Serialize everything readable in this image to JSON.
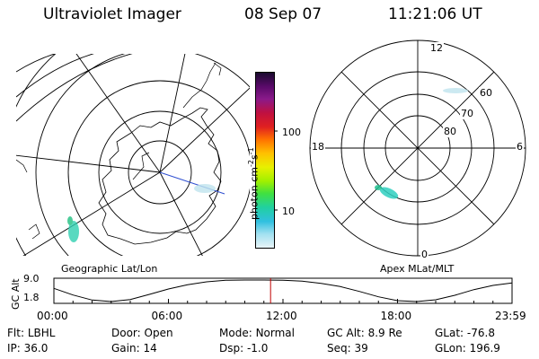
{
  "header": {
    "instrument": "Ultraviolet Imager",
    "date": "08 Sep 07",
    "time": "11:21:06 UT"
  },
  "geo_map": {
    "caption": "Geographic Lat/Lon"
  },
  "apex_map": {
    "caption": "Apex MLat/MLT",
    "mlt_labels": [
      "12",
      "18",
      "6",
      "0"
    ],
    "mlat_labels": [
      "60",
      "70",
      "80"
    ]
  },
  "colorbar": {
    "unit_label": "photon cm",
    "unit_exp1": "-2",
    "unit_s": "s",
    "unit_exp2": "-1",
    "ticks": [
      "100",
      "10"
    ],
    "colors": [
      "#1a0a2e",
      "#5a0a6a",
      "#8a1a8a",
      "#c01040",
      "#e02020",
      "#ff7000",
      "#ffc000",
      "#e8f000",
      "#a0f000",
      "#40e040",
      "#20d0a0",
      "#30c0e0",
      "#a0e0f0",
      "#e8f4f8"
    ]
  },
  "alt_plot": {
    "ylabel": "GC Alt",
    "yticks": [
      "9.0",
      "1.8"
    ]
  },
  "chart_data": {
    "type": "line",
    "title": "",
    "ylabel": "GC Alt",
    "xlabel": "",
    "x_tick_labels": [
      "00:00",
      "06:00",
      "12:00",
      "18:00",
      "23:59"
    ],
    "x_hours": [
      0,
      1,
      2,
      3,
      4,
      5,
      6,
      7,
      8,
      9,
      10,
      11,
      12,
      13,
      14,
      15,
      16,
      17,
      18,
      19,
      20,
      21,
      22,
      23,
      24
    ],
    "y": [
      6.2,
      4.0,
      2.3,
      1.8,
      2.5,
      4.2,
      6.0,
      7.4,
      8.4,
      8.9,
      9.0,
      9.0,
      8.9,
      8.6,
      7.9,
      6.8,
      5.2,
      3.4,
      2.1,
      1.8,
      2.4,
      3.9,
      5.8,
      7.2,
      8.0
    ],
    "ylim": [
      1.8,
      9.0
    ],
    "current_time_hours": 11.35
  },
  "info": {
    "row1": [
      {
        "key": "Flt:",
        "val": "LBHL"
      },
      {
        "key": "Door:",
        "val": "Open"
      },
      {
        "key": "Mode:",
        "val": "Normal"
      },
      {
        "key": "GC Alt:",
        "val": "8.9 Re"
      },
      {
        "key": "GLat:",
        "val": "-76.8"
      }
    ],
    "row2": [
      {
        "key": "IP:",
        "val": "36.0"
      },
      {
        "key": "Gain:",
        "val": "14"
      },
      {
        "key": "Dsp:",
        "val": "-1.0"
      },
      {
        "key": "Seq:",
        "val": "39"
      },
      {
        "key": "GLon:",
        "val": "196.9"
      }
    ]
  }
}
